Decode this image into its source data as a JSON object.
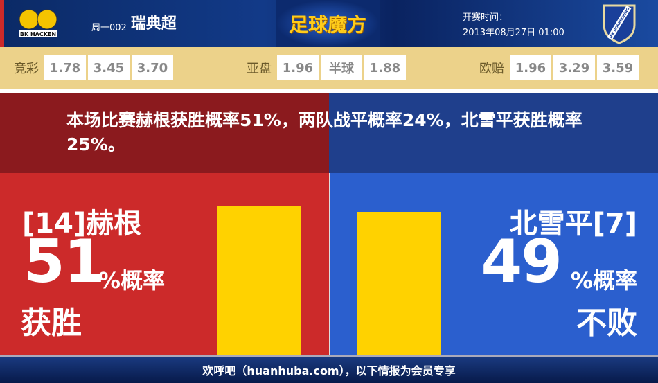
{
  "header": {
    "home_logo_text": "BK HACKEN",
    "away_logo_text": "IFK NORRKÖPING",
    "match_no": "周一002",
    "league": "瑞典超",
    "brand": "足球魔方",
    "kickoff_label": "开赛时间：",
    "kickoff_time": "2013年08月27日 01:00"
  },
  "odds": [
    {
      "label": "竞彩",
      "values": [
        "1.78",
        "3.45",
        "3.70"
      ]
    },
    {
      "label": "亚盘",
      "values": [
        "1.96",
        "半球",
        "1.88"
      ]
    },
    {
      "label": "欧赔",
      "values": [
        "1.96",
        "3.29",
        "3.59"
      ]
    }
  ],
  "message": "本场比赛赫根获胜概率51%，两队战平概率24%，北雪平获胜概率25%。",
  "home": {
    "team": "[14]赫根",
    "percent": "51",
    "unit": "%概率",
    "outcome": "获胜",
    "bar_value": 51
  },
  "away": {
    "team": "北雪平[7]",
    "percent": "49",
    "unit": "%概率",
    "outcome": "不败",
    "bar_value": 49
  },
  "colors": {
    "home": "#cc2a2a",
    "away": "#2b5fce",
    "bar": "#ffd200",
    "odds_bg": "#ecd28a"
  },
  "footer": "欢呼吧（huanhuba.com），以下情报为会员专享"
}
